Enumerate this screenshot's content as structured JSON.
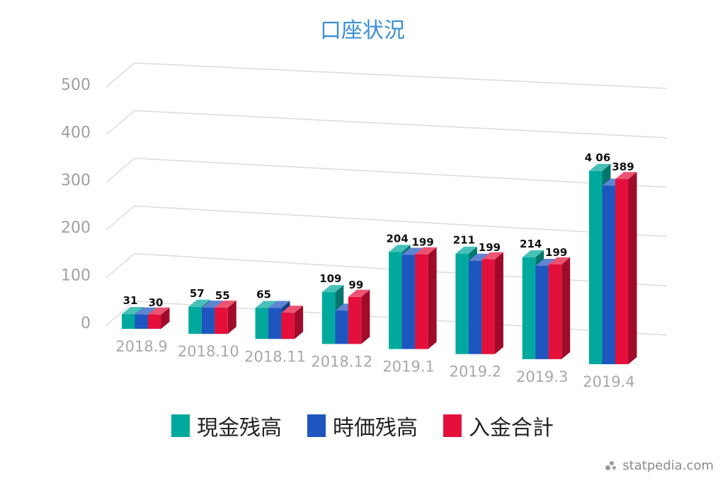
{
  "chart_data": {
    "type": "bar",
    "title": "口座状況",
    "categories": [
      "2018.9",
      "2018.10",
      "2018.11",
      "2018.12",
      "2019.1",
      "2019.2",
      "2019.3",
      "2019.4"
    ],
    "series": [
      {
        "name": "現金残高",
        "color": "#00a99d",
        "values": [
          31,
          57,
          65,
          109,
          204,
          211,
          214,
          406
        ]
      },
      {
        "name": "時価残高",
        "color": "#1e56c0",
        "values": [
          30,
          55,
          65,
          70,
          198,
          196,
          196,
          375
        ]
      },
      {
        "name": "入金合計",
        "color": "#e4103b",
        "values": [
          30,
          55,
          55,
          99,
          199,
          199,
          199,
          389
        ]
      }
    ],
    "data_labels": [
      {
        "category": "2018.9",
        "labels": [
          "31",
          "30"
        ]
      },
      {
        "category": "2018.10",
        "labels": [
          "57",
          "55"
        ]
      },
      {
        "category": "2018.11",
        "labels": [
          "65"
        ]
      },
      {
        "category": "2018.12",
        "labels": [
          "109",
          "99"
        ]
      },
      {
        "category": "2019.1",
        "labels": [
          "204",
          "199"
        ]
      },
      {
        "category": "2019.2",
        "labels": [
          "211",
          "199"
        ]
      },
      {
        "category": "2019.3",
        "labels": [
          "214",
          "199"
        ]
      },
      {
        "category": "2019.4",
        "labels": [
          "4 06",
          "389"
        ]
      }
    ],
    "y_ticks": [
      "0",
      "100",
      "200",
      "300",
      "400",
      "500"
    ],
    "ylim": [
      0,
      500
    ],
    "grid": true,
    "legend_position": "bottom"
  },
  "watermark": "statpedia.com"
}
